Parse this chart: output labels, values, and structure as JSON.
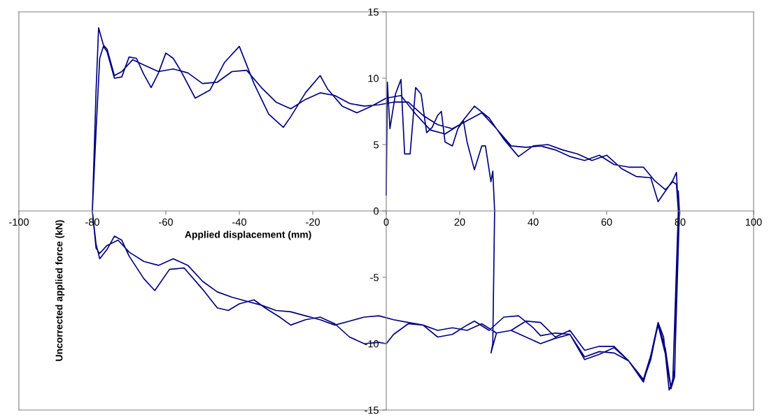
{
  "chart_data": {
    "type": "line",
    "xlabel": "Applied displacement (mm)",
    "ylabel": "Uncorrected applied force (kN)",
    "xlim": [
      -100,
      100
    ],
    "xticks": [
      -100,
      -80,
      -60,
      -40,
      -20,
      0,
      20,
      40,
      60,
      80,
      100
    ],
    "ylim": [
      -15,
      15
    ],
    "yticks": [
      -15,
      -10,
      -5,
      0,
      5,
      10,
      15
    ],
    "grid": false,
    "legend": false,
    "marker": "none",
    "line_style": "solid",
    "series": [
      {
        "color": "#000080",
        "x": [
          0,
          0.3,
          1,
          2.5,
          4,
          5,
          6.5,
          8,
          9.5,
          11,
          12.5,
          14,
          15,
          16,
          18,
          19.5,
          21,
          22,
          24,
          26,
          27,
          28.5,
          29,
          29.5,
          29,
          28.5,
          30,
          34,
          38,
          42,
          46,
          50,
          54,
          58,
          62,
          66,
          70,
          72,
          74,
          76,
          77.5,
          78.5,
          79.5,
          79,
          78,
          76,
          74,
          72,
          68,
          64,
          60,
          56,
          52,
          48,
          44,
          40,
          36,
          32,
          28,
          24,
          20,
          16,
          12,
          8,
          4,
          0,
          -4,
          -8,
          -12,
          -16,
          -18,
          -22,
          -26,
          -28,
          -32,
          -36,
          -40,
          -44,
          -48,
          -52,
          -56,
          -58,
          -60,
          -62,
          -64,
          -66,
          -68,
          -70,
          -72,
          -74,
          -76,
          -77,
          -78,
          -79,
          -80,
          -79,
          -78,
          -76,
          -74,
          -72,
          -70,
          -66,
          -63,
          -59,
          -55,
          -50,
          -46,
          -43,
          -40,
          -36,
          -33,
          -29,
          -26,
          -22,
          -18,
          -14,
          -10,
          -6,
          -2,
          0,
          2,
          6,
          10,
          14,
          18,
          22,
          24,
          28,
          32,
          36,
          40,
          42,
          46,
          50,
          54,
          58,
          62,
          66,
          70,
          72,
          74,
          75.5,
          77,
          78,
          79.5,
          79,
          78,
          76,
          73,
          70,
          66,
          62,
          58,
          54,
          50,
          46,
          42,
          38,
          34,
          30,
          26,
          22,
          18,
          14,
          10,
          6,
          2,
          -2,
          -6,
          -10,
          -14,
          -18,
          -22,
          -26,
          -30,
          -34,
          -38,
          -42,
          -46,
          -50,
          -54,
          -58,
          -62,
          -66,
          -69,
          -72,
          -74,
          -76,
          -77,
          -78.3,
          -79,
          -80,
          -79,
          -78,
          -76,
          -73,
          -70,
          -66,
          -62,
          -58,
          -54,
          -50,
          -46,
          -42,
          -38,
          -34,
          -30,
          -26,
          -22,
          -18,
          -14,
          -10,
          -6,
          -2,
          2,
          6,
          10,
          14,
          18,
          22,
          26,
          30,
          34,
          38,
          42,
          46,
          50,
          54,
          58,
          62,
          66,
          70,
          72,
          74,
          76,
          77.5,
          78.5,
          79.8,
          79.5
        ],
        "values": [
          1.2,
          9.7,
          6.2,
          8.8,
          9.9,
          4.3,
          4.3,
          9.3,
          8.8,
          5.9,
          6.3,
          7.2,
          7.5,
          5.2,
          4.9,
          6.2,
          6.8,
          5.2,
          3.1,
          4.9,
          4.9,
          2.2,
          3.0,
          0,
          -10.0,
          -10.7,
          -9.2,
          -9.0,
          -8.3,
          -8.4,
          -9.5,
          -9.0,
          -10.5,
          -10.2,
          -10.2,
          -11.3,
          -12.9,
          -11.0,
          -8.6,
          -10.8,
          -13.4,
          -12.5,
          0,
          2.9,
          2.3,
          1.5,
          0.7,
          2.5,
          2.6,
          3.2,
          4.2,
          3.8,
          4.3,
          4.6,
          5.0,
          4.9,
          4.1,
          5.4,
          7.0,
          7.9,
          6.5,
          5.8,
          6.1,
          7.3,
          8.7,
          8.5,
          7.9,
          7.4,
          7.9,
          9.2,
          10.2,
          8.9,
          7.1,
          6.3,
          7.3,
          9.6,
          12.4,
          11.2,
          9.1,
          8.5,
          10.6,
          11.5,
          11.9,
          10.4,
          9.3,
          10.3,
          11.5,
          11.6,
          10.1,
          10.0,
          12.0,
          12.4,
          11.5,
          6,
          0,
          -2.5,
          -3.6,
          -2.9,
          -1.9,
          -2.2,
          -3.4,
          -5.1,
          -6.0,
          -4.4,
          -4.3,
          -5.9,
          -7.3,
          -7.5,
          -7.0,
          -6.7,
          -7.3,
          -8.0,
          -8.6,
          -8.2,
          -8.0,
          -8.5,
          -9.5,
          -10.0,
          -9.9,
          -10.0,
          -9.3,
          -8.5,
          -8.6,
          -9.5,
          -9.3,
          -8.6,
          -8.3,
          -9.0,
          -8.0,
          -7.9,
          -8.8,
          -9.4,
          -9.2,
          -9.3,
          -11.2,
          -10.8,
          -10.3,
          -11.3,
          -12.7,
          -10.9,
          -8.4,
          -9.5,
          -13.5,
          -12.8,
          0,
          2.0,
          2.2,
          1.6,
          2.3,
          3.3,
          3.3,
          3.5,
          4.2,
          3.8,
          4.1,
          4.6,
          4.9,
          4.8,
          4.9,
          6.2,
          7.4,
          6.8,
          6.2,
          6.5,
          7.2,
          8.2,
          8.2,
          8.0,
          7.9,
          8.1,
          8.7,
          8.9,
          8.4,
          7.7,
          8.2,
          9.3,
          10.6,
          10.5,
          9.7,
          9.6,
          10.4,
          10.7,
          10.5,
          11.0,
          11.4,
          10.5,
          10.2,
          12.2,
          12.5,
          13.8,
          9,
          0,
          -2.8,
          -3.2,
          -2.6,
          -2.2,
          -3.1,
          -3.8,
          -4.1,
          -3.6,
          -4.1,
          -5.3,
          -6.1,
          -6.5,
          -6.8,
          -7.1,
          -7.5,
          -7.6,
          -7.9,
          -8.2,
          -8.6,
          -8.3,
          -8.0,
          -7.9,
          -8.2,
          -8.4,
          -8.6,
          -9.0,
          -8.8,
          -9.0,
          -8.5,
          -9.2,
          -9.0,
          -9.5,
          -10.0,
          -9.6,
          -9.3,
          -11.0,
          -10.6,
          -10.7,
          -11.3,
          -12.8,
          -11.2,
          -8.5,
          -10.4,
          -13.3,
          -12.0,
          0,
          1.5
        ]
      }
    ]
  }
}
